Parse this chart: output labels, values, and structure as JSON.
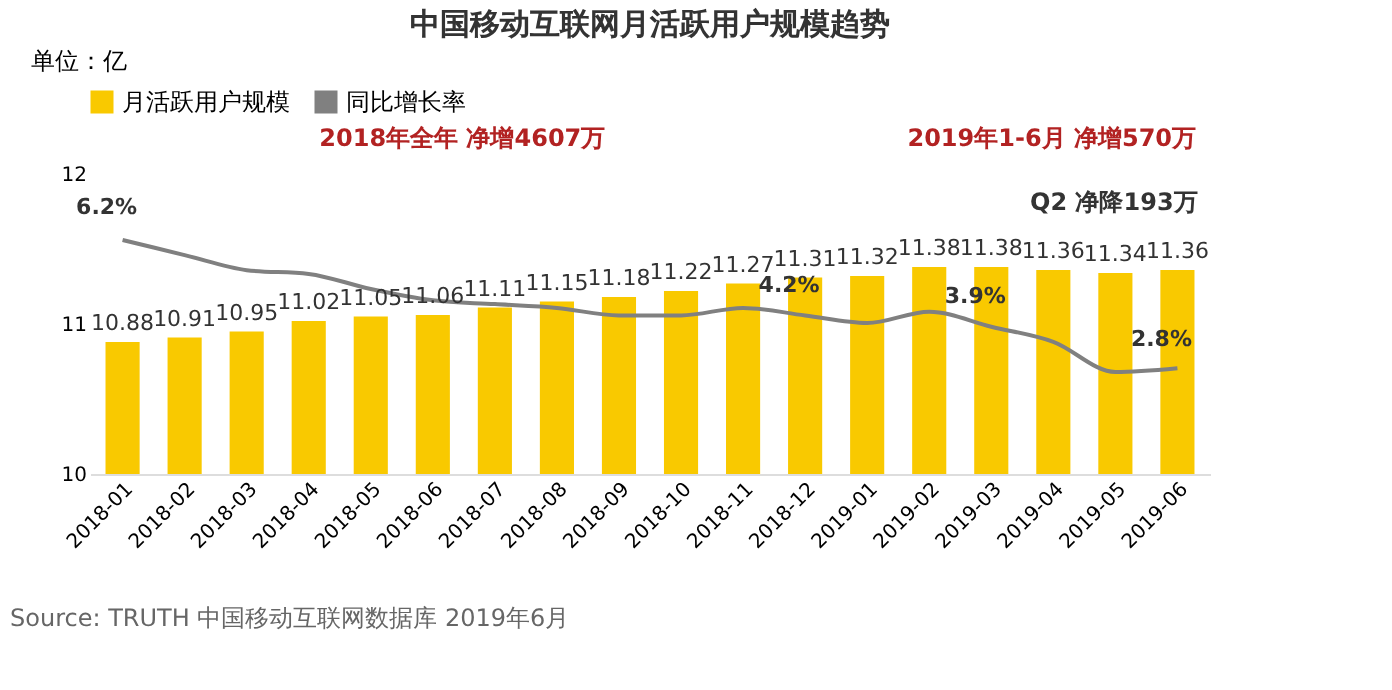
{
  "chart_data": {
    "type": "bar",
    "title": "中国移动互联网月活跃用户规模趋势",
    "ylabel": "单位：亿",
    "categories": [
      "2018-01",
      "2018-02",
      "2018-03",
      "2018-04",
      "2018-05",
      "2018-06",
      "2018-07",
      "2018-08",
      "2018-09",
      "2018-10",
      "2018-11",
      "2018-12",
      "2019-01",
      "2019-02",
      "2019-03",
      "2019-04",
      "2019-05",
      "2019-06"
    ],
    "series": [
      {
        "name": "月活跃用户规模",
        "color": "#f9c900",
        "values": [
          10.88,
          10.91,
          10.95,
          11.02,
          11.05,
          11.06,
          11.11,
          11.15,
          11.18,
          11.22,
          11.27,
          11.31,
          11.32,
          11.38,
          11.38,
          11.36,
          11.34,
          11.36
        ],
        "value_labels": [
          "10.88",
          "10.91",
          "10.95",
          "11.02",
          "11.05",
          "11.06",
          "11.11",
          "11.15",
          "11.18",
          "11.22",
          "11.27",
          "11.31",
          "11.32",
          "11.38",
          "11.38",
          "11.36",
          "11.34",
          "11.36"
        ]
      },
      {
        "name": "同比增长率",
        "type": "line",
        "axis": "y2",
        "color": "#808080",
        "values": [
          6.2,
          5.8,
          5.4,
          5.3,
          4.9,
          4.6,
          4.5,
          4.4,
          4.2,
          4.2,
          4.4,
          4.2,
          4.0,
          4.3,
          3.9,
          3.5,
          2.7,
          2.8
        ],
        "value_labels": [
          "6.2%",
          null,
          null,
          null,
          null,
          null,
          null,
          null,
          null,
          null,
          null,
          "4.2%",
          null,
          null,
          "3.9%",
          null,
          null,
          "2.8%"
        ]
      }
    ],
    "ylim": [
      10,
      12
    ],
    "yticks": [
      10,
      11,
      12
    ],
    "legend": "top",
    "annotations": [
      "2018年全年 净增4607万",
      "2019年1-6月 净增570万",
      "Q2 净降193万",
      "Source: TRUTH 中国移动互联网数据库 2019年6月"
    ]
  }
}
